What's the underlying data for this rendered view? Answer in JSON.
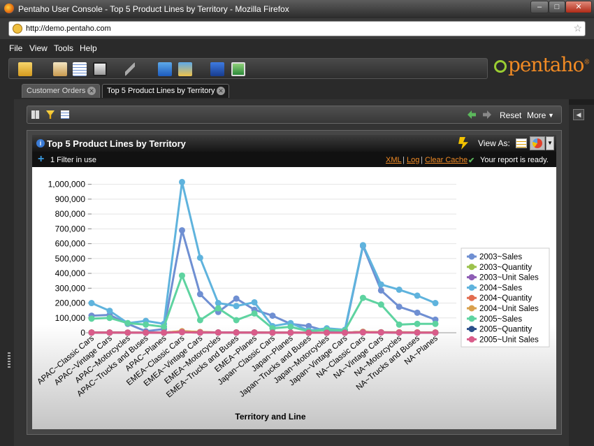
{
  "window": {
    "title": "Pentaho User Console - Top 5 Product Lines by Territory - Mozilla Firefox"
  },
  "browser": {
    "url": "http://demo.pentaho.com"
  },
  "menu": [
    "File",
    "View",
    "Tools",
    "Help"
  ],
  "brand": {
    "logo_text": "pentaho"
  },
  "tabs": [
    {
      "label": "Customer Orders"
    },
    {
      "label": "Top 5 Product Lines by Territory"
    }
  ],
  "report_toolbar": {
    "reset": "Reset",
    "more": "More"
  },
  "report": {
    "title": "Top 5 Product Lines by Territory",
    "view_as": "View As:",
    "filter_text": "1 Filter in use",
    "links": {
      "xml": "XML",
      "log": "Log",
      "clear_cache": "Clear Cache"
    },
    "status": "Your report is ready."
  },
  "colors": {
    "2003~Sales": "#6f8fd2",
    "2003~Quantity": "#9cc24c",
    "2003~Unit Sales": "#8e5db5",
    "2004~Sales": "#5fb3dd",
    "2004~Quantity": "#e26c4f",
    "2004~Unit Sales": "#d9a04d",
    "2005~Sales": "#5ed3a0",
    "2005~Quantity": "#2b4f8a",
    "2005~Unit Sales": "#d95c8a"
  },
  "chart_data": {
    "type": "line",
    "xlabel": "Territory and Line",
    "ylabel": "",
    "ylim": [
      0,
      1050000
    ],
    "yticks": [
      0,
      100000,
      200000,
      300000,
      400000,
      500000,
      600000,
      700000,
      800000,
      900000,
      1000000
    ],
    "ytick_labels": [
      "0",
      "100,000",
      "200,000",
      "300,000",
      "400,000",
      "500,000",
      "600,000",
      "700,000",
      "800,000",
      "900,000",
      "1,000,000"
    ],
    "legend_position": "right",
    "categories": [
      "APAC~Classic Cars",
      "APAC~Vintage Cars",
      "APAC~Motorcycles",
      "APAC~Trucks and Buses",
      "APAC~Planes",
      "EMEA~Classic Cars",
      "EMEA~Vintage Cars",
      "EMEA~Motorcycles",
      "EMEA~Trucks and Buses",
      "EMEA~Planes",
      "Japan~Classic Cars",
      "Japan~Planes",
      "Japan~Trucks and Buses",
      "Japan~Motorcycles",
      "Japan~Vintage Cars",
      "NA~Classic Cars",
      "NA~Vintage Cars",
      "NA~Motorcycles",
      "NA~Trucks and Buses",
      "NA~Planes"
    ],
    "series": [
      {
        "name": "2003~Sales",
        "values": [
          115000,
          120000,
          60000,
          10000,
          25000,
          690000,
          260000,
          140000,
          230000,
          155000,
          115000,
          60000,
          45000,
          10000,
          10000,
          585000,
          285000,
          175000,
          135000,
          88000
        ]
      },
      {
        "name": "2003~Quantity",
        "values": [
          1100,
          1200,
          600,
          100,
          300,
          6900,
          2800,
          1500,
          2300,
          1700,
          1200,
          600,
          500,
          100,
          100,
          6000,
          3000,
          1800,
          1400,
          900
        ]
      },
      {
        "name": "2003~Unit Sales",
        "values": [
          1100,
          1200,
          600,
          100,
          300,
          6900,
          2800,
          1500,
          2300,
          1700,
          1200,
          600,
          500,
          100,
          100,
          6000,
          3000,
          1800,
          1400,
          900
        ]
      },
      {
        "name": "2004~Sales",
        "values": [
          200000,
          148000,
          65000,
          80000,
          60000,
          1015000,
          505000,
          200000,
          180000,
          205000,
          45000,
          65000,
          15000,
          30000,
          20000,
          590000,
          325000,
          290000,
          250000,
          200000
        ]
      },
      {
        "name": "2004~Quantity",
        "values": [
          2000,
          1500,
          700,
          800,
          600,
          10000,
          5000,
          2000,
          1800,
          2000,
          500,
          700,
          200,
          300,
          200,
          5900,
          3200,
          2900,
          2500,
          2000
        ]
      },
      {
        "name": "2004~Unit Sales",
        "values": [
          2000,
          1500,
          700,
          800,
          600,
          10000,
          5000,
          2000,
          1800,
          2000,
          500,
          700,
          200,
          300,
          200,
          5900,
          3200,
          2900,
          2500,
          2000
        ]
      },
      {
        "name": "2005~Sales",
        "values": [
          95000,
          100000,
          65000,
          55000,
          40000,
          385000,
          85000,
          165000,
          85000,
          130000,
          30000,
          40000,
          10000,
          20000,
          15000,
          235000,
          190000,
          55000,
          60000,
          60000
        ]
      },
      {
        "name": "2005~Quantity",
        "values": [
          900,
          1000,
          600,
          500,
          400,
          3800,
          900,
          1600,
          900,
          1300,
          300,
          400,
          100,
          200,
          200,
          2300,
          1900,
          600,
          600,
          600
        ]
      },
      {
        "name": "2005~Unit Sales",
        "values": [
          900,
          1000,
          600,
          500,
          400,
          3800,
          900,
          1600,
          900,
          1300,
          300,
          400,
          100,
          200,
          200,
          2300,
          1900,
          600,
          600,
          600
        ]
      }
    ]
  }
}
